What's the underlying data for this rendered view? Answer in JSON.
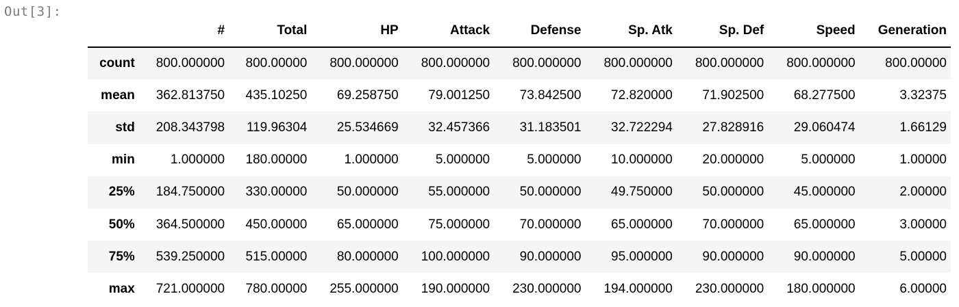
{
  "cell": {
    "prompt": "Out[3]:"
  },
  "describe_table": {
    "columns": [
      "#",
      "Total",
      "HP",
      "Attack",
      "Defense",
      "Sp. Atk",
      "Sp. Def",
      "Speed",
      "Generation"
    ],
    "rows": [
      {
        "label": "count",
        "values": [
          "800.000000",
          "800.00000",
          "800.000000",
          "800.000000",
          "800.000000",
          "800.000000",
          "800.000000",
          "800.000000",
          "800.00000"
        ]
      },
      {
        "label": "mean",
        "values": [
          "362.813750",
          "435.10250",
          "69.258750",
          "79.001250",
          "73.842500",
          "72.820000",
          "71.902500",
          "68.277500",
          "3.32375"
        ]
      },
      {
        "label": "std",
        "values": [
          "208.343798",
          "119.96304",
          "25.534669",
          "32.457366",
          "31.183501",
          "32.722294",
          "27.828916",
          "29.060474",
          "1.66129"
        ]
      },
      {
        "label": "min",
        "values": [
          "1.000000",
          "180.00000",
          "1.000000",
          "5.000000",
          "5.000000",
          "10.000000",
          "20.000000",
          "5.000000",
          "1.00000"
        ]
      },
      {
        "label": "25%",
        "values": [
          "184.750000",
          "330.00000",
          "50.000000",
          "55.000000",
          "50.000000",
          "49.750000",
          "50.000000",
          "45.000000",
          "2.00000"
        ]
      },
      {
        "label": "50%",
        "values": [
          "364.500000",
          "450.00000",
          "65.000000",
          "75.000000",
          "70.000000",
          "65.000000",
          "70.000000",
          "65.000000",
          "3.00000"
        ]
      },
      {
        "label": "75%",
        "values": [
          "539.250000",
          "515.00000",
          "80.000000",
          "100.000000",
          "90.000000",
          "95.000000",
          "90.000000",
          "90.000000",
          "5.00000"
        ]
      },
      {
        "label": "max",
        "values": [
          "721.000000",
          "780.00000",
          "255.000000",
          "190.000000",
          "230.000000",
          "194.000000",
          "230.000000",
          "180.000000",
          "6.00000"
        ]
      }
    ]
  },
  "colors": {
    "prompt": "#7a7a7a",
    "stripe": "#f5f5f5",
    "header_rule": "#000000"
  }
}
